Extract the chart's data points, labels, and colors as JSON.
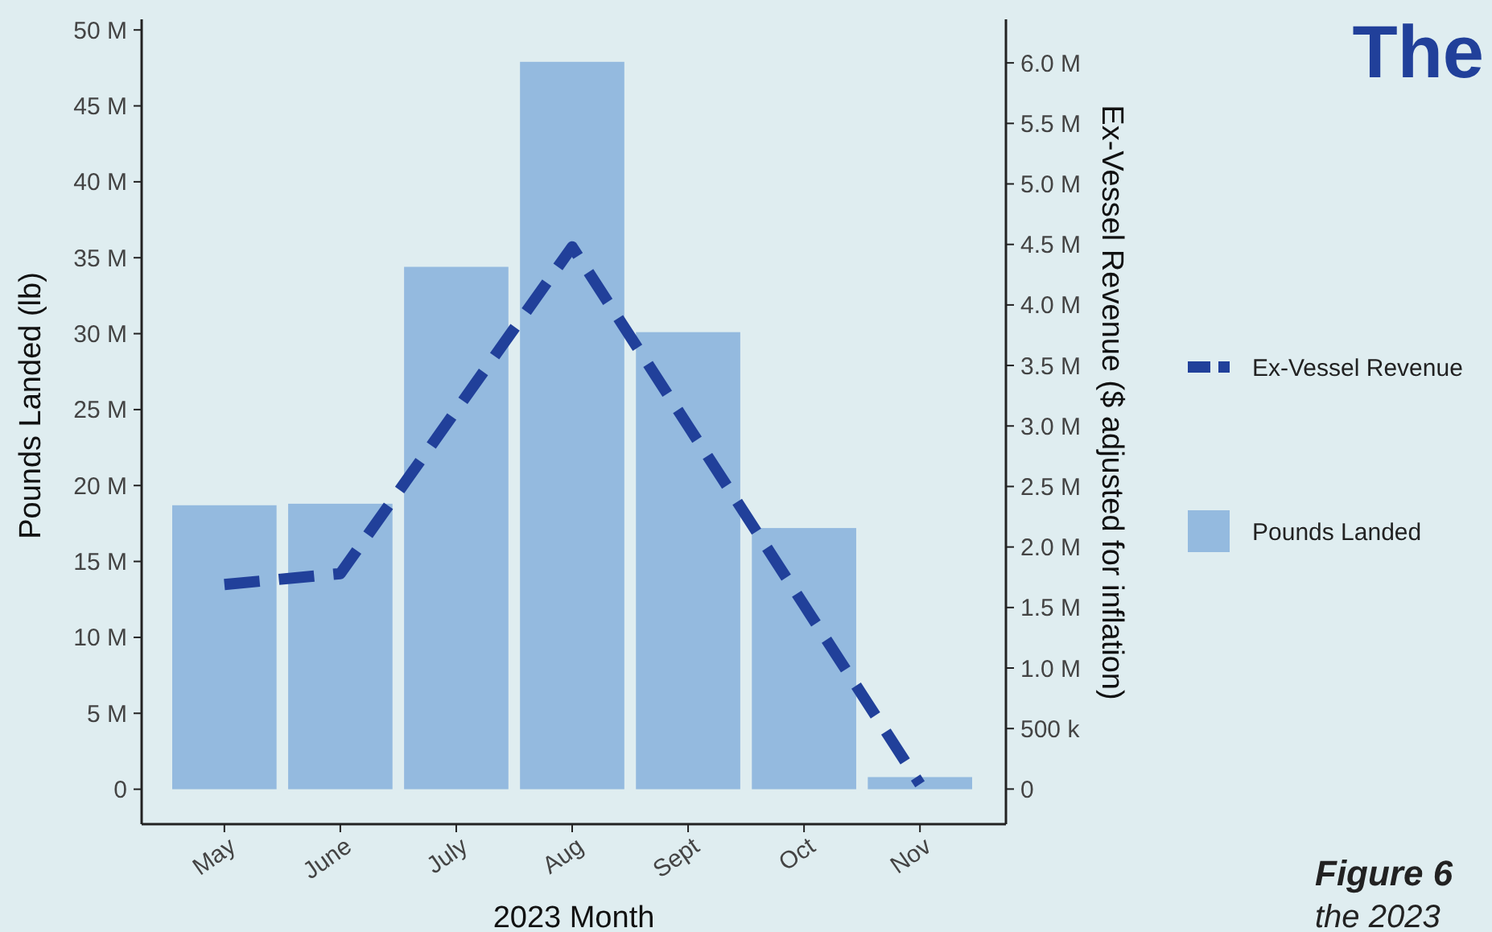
{
  "chart_data": {
    "type": "bar",
    "xlabel": "2023 Month",
    "ylabel": "Pounds Landed (lb)",
    "y2label": "Ex-Vessel Revenue ($ adjusted for inflation)",
    "categories": [
      "May",
      "June",
      "July",
      "Aug",
      "Sept",
      "Oct",
      "Nov"
    ],
    "series": [
      {
        "name": "Pounds Landed",
        "color": "#94badf",
        "values": [
          18.7,
          18.8,
          34.4,
          47.9,
          30.1,
          17.2,
          0.8
        ]
      },
      {
        "name": "Ex-Vessel Revenue",
        "type": "line",
        "axis": "y2",
        "color": "#21409a",
        "line_style": "dashed",
        "values": [
          1.69,
          1.78,
          3.13,
          4.48,
          3.0,
          1.52,
          0.04
        ]
      }
    ],
    "ylim": [
      -2.3,
      50.7
    ],
    "yticks": [
      {
        "value": 0,
        "label": "0"
      },
      {
        "value": 5,
        "label": "5 M"
      },
      {
        "value": 10,
        "label": "10 M"
      },
      {
        "value": 15,
        "label": "15 M"
      },
      {
        "value": 20,
        "label": "20 M"
      },
      {
        "value": 25,
        "label": "25 M"
      },
      {
        "value": 30,
        "label": "30 M"
      },
      {
        "value": 35,
        "label": "35 M"
      },
      {
        "value": 40,
        "label": "40 M"
      },
      {
        "value": 45,
        "label": "45 M"
      },
      {
        "value": 50,
        "label": "50 M"
      }
    ],
    "y2lim": [
      -0.29,
      6.36
    ],
    "y2ticks": [
      {
        "value": 0,
        "label": "0"
      },
      {
        "value": 0.5,
        "label": "500 k"
      },
      {
        "value": 1,
        "label": "1.0 M"
      },
      {
        "value": 1.5,
        "label": "1.5 M"
      },
      {
        "value": 2,
        "label": "2.0 M"
      },
      {
        "value": 2.5,
        "label": "2.5 M"
      },
      {
        "value": 3,
        "label": "3.0 M"
      },
      {
        "value": 3.5,
        "label": "3.5 M"
      },
      {
        "value": 4,
        "label": "4.0 M"
      },
      {
        "value": 4.5,
        "label": "4.5 M"
      },
      {
        "value": 5,
        "label": "5.0 M"
      },
      {
        "value": 5.5,
        "label": "5.5 M"
      },
      {
        "value": 6,
        "label": "6.0 M"
      }
    ],
    "legend": "right",
    "grid": false,
    "annotations": [
      "The",
      "Figure 6",
      "the 2023"
    ]
  }
}
